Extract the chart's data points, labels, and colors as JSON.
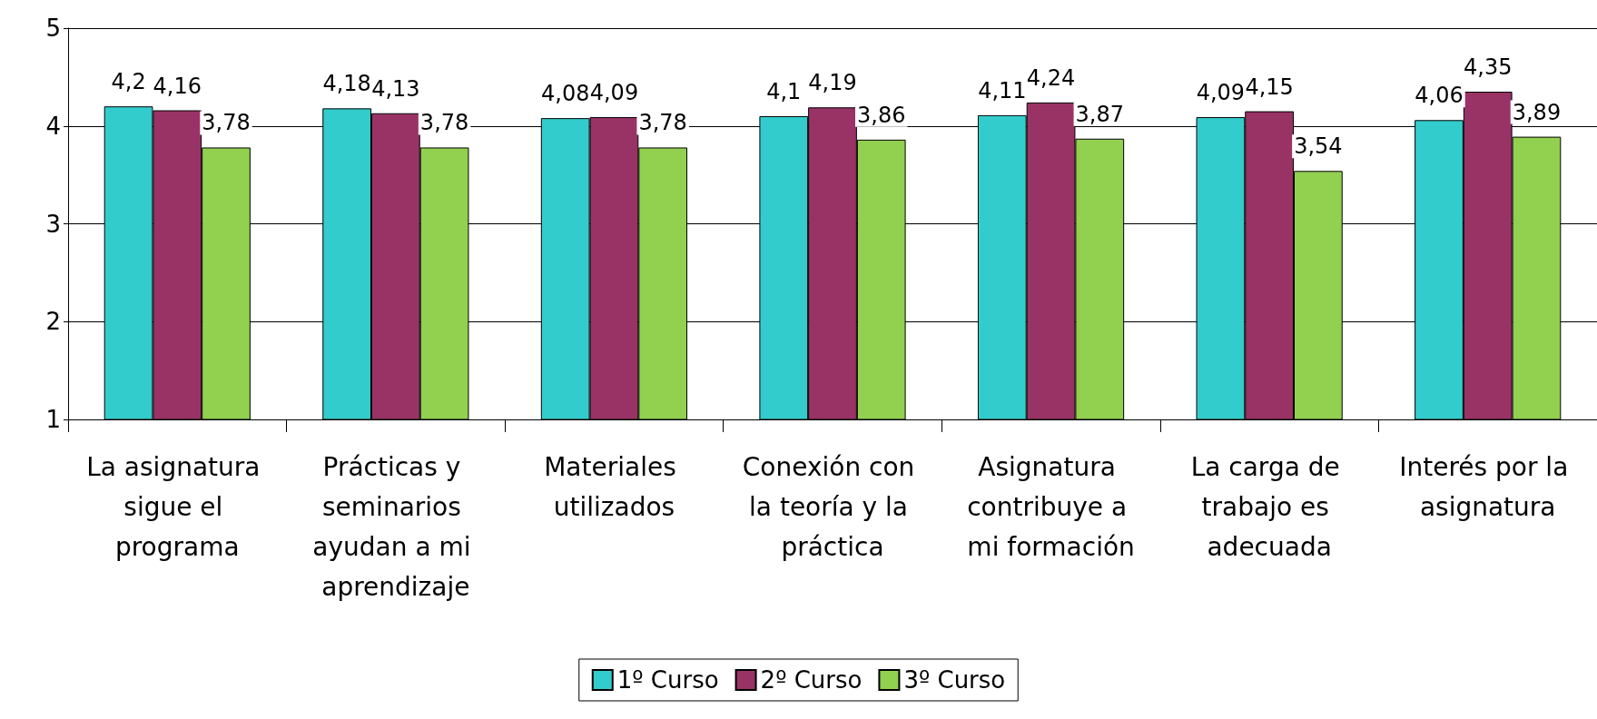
{
  "chart_data": {
    "type": "bar",
    "categories": [
      "La asignatura sigue el programa",
      "Prácticas y seminarios ayudan a mi aprendizaje",
      "Materiales utilizados",
      "Conexión con la teoría y la práctica",
      "Asignatura contribuye a mi formación",
      "La carga de trabajo es adecuada",
      "Interés por la asignatura"
    ],
    "series": [
      {
        "name": "1º Curso",
        "color": "#33cccc",
        "values": [
          4.2,
          4.18,
          4.08,
          4.1,
          4.11,
          4.09,
          4.06
        ],
        "value_labels": [
          "4,2",
          "4,18",
          "4,08",
          "4,1",
          "4,11",
          "4,09",
          "4,06"
        ]
      },
      {
        "name": "2º Curso",
        "color": "#993366",
        "values": [
          4.16,
          4.13,
          4.09,
          4.19,
          4.24,
          4.15,
          4.35
        ],
        "value_labels": [
          "4,16",
          "4,13",
          "4,09",
          "4,19",
          "4,24",
          "4,15",
          "4,35"
        ]
      },
      {
        "name": "3º Curso",
        "color": "#92d050",
        "values": [
          3.78,
          3.78,
          3.78,
          3.86,
          3.87,
          3.54,
          3.89
        ],
        "value_labels": [
          "3,78",
          "3,78",
          "3,78",
          "3,86",
          "3,87",
          "3,54",
          "3,89"
        ]
      }
    ],
    "ylim": [
      1,
      5
    ],
    "yticks": [
      1,
      2,
      3,
      4,
      5
    ],
    "grid": "y",
    "legend": "bottom"
  }
}
